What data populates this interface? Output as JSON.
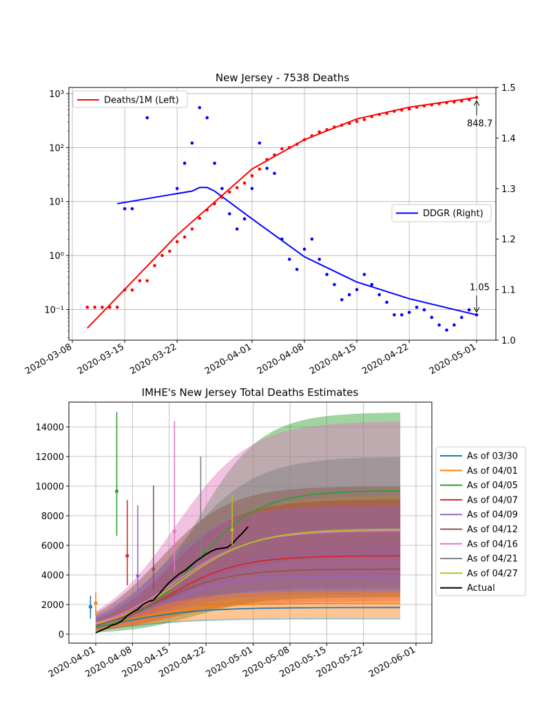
{
  "chart_data": [
    {
      "type": "scatter",
      "title": "New Jersey - 7538 Deaths",
      "xlabel": "",
      "ylabel_left": "",
      "ylabel_right": "",
      "x_ticks": [
        "2020-03-08",
        "2020-03-15",
        "2020-03-22",
        "2020-04-01",
        "2020-04-08",
        "2020-04-15",
        "2020-04-22",
        "2020-05-01"
      ],
      "y_left_scale": "log",
      "y_left_ticks": [
        "10⁻¹",
        "10⁰",
        "10¹",
        "10²",
        "10³"
      ],
      "y_left_lim": [
        0.027,
        1300
      ],
      "y_right_ticks": [
        "1.0",
        "1.1",
        "1.2",
        "1.3",
        "1.4",
        "1.5"
      ],
      "y_right_lim": [
        1.0,
        1.5
      ],
      "grid": true,
      "legend_left": {
        "label": "Deaths/1M (Left)",
        "color": "#ff0000",
        "placement": "upper-left"
      },
      "legend_right": {
        "label": "DDGR (Right)",
        "color": "#0000ff",
        "placement": "center-right"
      },
      "annotations": [
        {
          "text": "848.7",
          "x": "2020-05-01",
          "y": 848.7,
          "axis": "left"
        },
        {
          "text": "1.05",
          "x": "2020-05-01",
          "y": 1.05,
          "axis": "right"
        }
      ],
      "series": [
        {
          "axis": "left",
          "color": "#ff0000",
          "points": [
            [
              "2020-03-10",
              0.11
            ],
            [
              "2020-03-11",
              0.11
            ],
            [
              "2020-03-12",
              0.11
            ],
            [
              "2020-03-13",
              0.11
            ],
            [
              "2020-03-14",
              0.11
            ],
            [
              "2020-03-15",
              0.23
            ],
            [
              "2020-03-16",
              0.23
            ],
            [
              "2020-03-17",
              0.34
            ],
            [
              "2020-03-18",
              0.34
            ],
            [
              "2020-03-19",
              0.65
            ],
            [
              "2020-03-20",
              1.0
            ],
            [
              "2020-03-21",
              1.2
            ],
            [
              "2020-03-22",
              1.8
            ],
            [
              "2020-03-23",
              2.2
            ],
            [
              "2020-03-24",
              3.1
            ],
            [
              "2020-03-25",
              4.9
            ],
            [
              "2020-03-26",
              7.0
            ],
            [
              "2020-03-27",
              9.1
            ],
            [
              "2020-03-28",
              12
            ],
            [
              "2020-03-29",
              15
            ],
            [
              "2020-03-30",
              18
            ],
            [
              "2020-03-31",
              22
            ],
            [
              "2020-04-01",
              30
            ],
            [
              "2020-04-02",
              40
            ],
            [
              "2020-04-03",
              60
            ],
            [
              "2020-04-04",
              73
            ],
            [
              "2020-04-05",
              95
            ],
            [
              "2020-04-06",
              100
            ],
            [
              "2020-04-07",
              115
            ],
            [
              "2020-04-08",
              140
            ],
            [
              "2020-04-09",
              165
            ],
            [
              "2020-04-10",
              195
            ],
            [
              "2020-04-11",
              215
            ],
            [
              "2020-04-12",
              240
            ],
            [
              "2020-04-13",
              260
            ],
            [
              "2020-04-14",
              280
            ],
            [
              "2020-04-15",
              305
            ],
            [
              "2020-04-16",
              330
            ],
            [
              "2020-04-17",
              375
            ],
            [
              "2020-04-18",
              410
            ],
            [
              "2020-04-19",
              430
            ],
            [
              "2020-04-20",
              470
            ],
            [
              "2020-04-21",
              495
            ],
            [
              "2020-04-22",
              520
            ],
            [
              "2020-04-23",
              560
            ],
            [
              "2020-04-24",
              590
            ],
            [
              "2020-04-25",
              620
            ],
            [
              "2020-04-26",
              650
            ],
            [
              "2020-04-27",
              675
            ],
            [
              "2020-04-28",
              700
            ],
            [
              "2020-04-29",
              730
            ],
            [
              "2020-04-30",
              770
            ],
            [
              "2020-05-01",
              848.7
            ]
          ],
          "fit": [
            [
              "2020-03-10",
              0.045
            ],
            [
              "2020-03-22",
              2.4
            ],
            [
              "2020-04-01",
              40
            ],
            [
              "2020-04-08",
              140
            ],
            [
              "2020-04-15",
              340
            ],
            [
              "2020-04-22",
              560
            ],
            [
              "2020-05-01",
              848.7
            ]
          ]
        },
        {
          "axis": "right",
          "color": "#0000ff",
          "points": [
            [
              "2020-03-15",
              1.26
            ],
            [
              "2020-03-16",
              1.26
            ],
            [
              "2020-03-18",
              1.44
            ],
            [
              "2020-03-22",
              1.3
            ],
            [
              "2020-03-23",
              1.35
            ],
            [
              "2020-03-24",
              1.39
            ],
            [
              "2020-03-25",
              1.46
            ],
            [
              "2020-03-26",
              1.44
            ],
            [
              "2020-03-27",
              1.35
            ],
            [
              "2020-03-28",
              1.3
            ],
            [
              "2020-03-29",
              1.25
            ],
            [
              "2020-03-30",
              1.22
            ],
            [
              "2020-03-31",
              1.24
            ],
            [
              "2020-04-01",
              1.3
            ],
            [
              "2020-04-02",
              1.39
            ],
            [
              "2020-04-03",
              1.34
            ],
            [
              "2020-04-04",
              1.33
            ],
            [
              "2020-04-05",
              1.2
            ],
            [
              "2020-04-06",
              1.16
            ],
            [
              "2020-04-07",
              1.14
            ],
            [
              "2020-04-08",
              1.18
            ],
            [
              "2020-04-09",
              1.2
            ],
            [
              "2020-04-10",
              1.16
            ],
            [
              "2020-04-11",
              1.13
            ],
            [
              "2020-04-12",
              1.11
            ],
            [
              "2020-04-13",
              1.08
            ],
            [
              "2020-04-14",
              1.09
            ],
            [
              "2020-04-15",
              1.1
            ],
            [
              "2020-04-16",
              1.13
            ],
            [
              "2020-04-17",
              1.11
            ],
            [
              "2020-04-18",
              1.09
            ],
            [
              "2020-04-19",
              1.075
            ],
            [
              "2020-04-20",
              1.05
            ],
            [
              "2020-04-21",
              1.05
            ],
            [
              "2020-04-22",
              1.055
            ],
            [
              "2020-04-23",
              1.065
            ],
            [
              "2020-04-24",
              1.06
            ],
            [
              "2020-04-25",
              1.045
            ],
            [
              "2020-04-26",
              1.03
            ],
            [
              "2020-04-27",
              1.02
            ],
            [
              "2020-04-28",
              1.03
            ],
            [
              "2020-04-29",
              1.045
            ],
            [
              "2020-04-30",
              1.06
            ],
            [
              "2020-05-01",
              1.05
            ]
          ],
          "fit": [
            [
              "2020-03-14",
              1.27
            ],
            [
              "2020-03-20",
              1.285
            ],
            [
              "2020-03-24",
              1.295
            ],
            [
              "2020-03-25",
              1.302
            ],
            [
              "2020-03-26",
              1.302
            ],
            [
              "2020-03-27",
              1.295
            ],
            [
              "2020-04-01",
              1.24
            ],
            [
              "2020-04-08",
              1.165
            ],
            [
              "2020-04-15",
              1.115
            ],
            [
              "2020-04-22",
              1.082
            ],
            [
              "2020-05-01",
              1.05
            ]
          ]
        }
      ]
    },
    {
      "type": "line",
      "title": "IMHE's New Jersey Total Deaths Estimates",
      "xlabel": "",
      "ylabel": "",
      "x_ticks": [
        "2020-04-01",
        "2020-04-08",
        "2020-04-15",
        "2020-04-22",
        "2020-05-01",
        "2020-05-08",
        "2020-05-15",
        "2020-05-22",
        "2020-06-01"
      ],
      "y_ticks": [
        "0",
        "2000",
        "4000",
        "6000",
        "8000",
        "10000",
        "12000",
        "14000"
      ],
      "ylim": [
        -700,
        15700
      ],
      "grid": true,
      "legend_placement": "outside-right",
      "series": [
        {
          "name": "As of 03/30",
          "color": "#1f77b4",
          "start": "2020-04-01",
          "final": 1800,
          "lower": 1000,
          "upper": 1100,
          "k": 0.14,
          "mid_offset": 6,
          "marker": {
            "x": "2020-03-31",
            "y": 1850,
            "lo": 1050,
            "hi": 2600
          }
        },
        {
          "name": "As of 04/01",
          "color": "#ff7f0e",
          "start": "2020-04-01",
          "final": 2100,
          "lower": 1100,
          "upper": 2900,
          "k": 0.14,
          "mid_offset": 7,
          "marker": {
            "x": "2020-04-01",
            "y": 2100,
            "lo": 1250,
            "hi": 2850
          }
        },
        {
          "name": "As of 04/05",
          "color": "#2ca02c",
          "start": "2020-04-01",
          "final": 9700,
          "lower": 2500,
          "upper": 15000,
          "k": 0.16,
          "mid_offset": 19,
          "marker": {
            "x": "2020-04-05",
            "y": 9650,
            "lo": 6650,
            "hi": 15000
          }
        },
        {
          "name": "As of 04/07",
          "color": "#d62728",
          "start": "2020-04-01",
          "final": 5300,
          "lower": 2200,
          "upper": 9100,
          "k": 0.15,
          "mid_offset": 14,
          "marker": {
            "x": "2020-04-07",
            "y": 5300,
            "lo": 3300,
            "hi": 9050
          }
        },
        {
          "name": "As of 04/09",
          "color": "#9467bd",
          "start": "2020-04-01",
          "final": 3950,
          "lower": 2700,
          "upper": 8700,
          "k": 0.15,
          "mid_offset": 12,
          "marker": {
            "x": "2020-04-09",
            "y": 3950,
            "lo": 2350,
            "hi": 8700
          }
        },
        {
          "name": "As of 04/12",
          "color": "#8c564b",
          "start": "2020-04-01",
          "final": 4400,
          "lower": 3100,
          "upper": 10000,
          "k": 0.15,
          "mid_offset": 12,
          "marker": {
            "x": "2020-04-12",
            "y": 4400,
            "lo": 3000,
            "hi": 10050
          }
        },
        {
          "name": "As of 04/16",
          "color": "#e377c2",
          "start": "2020-04-01",
          "final": 7000,
          "lower": 4000,
          "upper": 14400,
          "k": 0.14,
          "mid_offset": 15,
          "marker": {
            "x": "2020-04-16",
            "y": 6950,
            "lo": 4200,
            "hi": 14400
          }
        },
        {
          "name": "As of 04/21",
          "color": "#7f7f7f",
          "start": "2020-04-01",
          "final": 7150,
          "lower": 5200,
          "upper": 12000,
          "k": 0.14,
          "mid_offset": 16,
          "marker": {
            "x": "2020-04-21",
            "y": 7100,
            "lo": 5200,
            "hi": 12000
          }
        },
        {
          "name": "As of 04/27",
          "color": "#bcbd22",
          "start": "2020-04-01",
          "final": 7100,
          "lower": 6000,
          "upper": 9400,
          "k": 0.14,
          "mid_offset": 16,
          "marker": {
            "x": "2020-04-27",
            "y": 7050,
            "lo": 6000,
            "hi": 9400
          }
        },
        {
          "name": "Actual",
          "color": "#000000",
          "points": [
            [
              "2020-04-01",
              100
            ],
            [
              "2020-04-02",
              250
            ],
            [
              "2020-04-03",
              400
            ],
            [
              "2020-04-04",
              600
            ],
            [
              "2020-04-05",
              700
            ],
            [
              "2020-04-06",
              900
            ],
            [
              "2020-04-07",
              1250
            ],
            [
              "2020-04-08",
              1500
            ],
            [
              "2020-04-09",
              1700
            ],
            [
              "2020-04-10",
              2000
            ],
            [
              "2020-04-11",
              2200
            ],
            [
              "2020-04-12",
              2300
            ],
            [
              "2020-04-13",
              2700
            ],
            [
              "2020-04-14",
              3100
            ],
            [
              "2020-04-15",
              3500
            ],
            [
              "2020-04-16",
              3800
            ],
            [
              "2020-04-17",
              4100
            ],
            [
              "2020-04-18",
              4300
            ],
            [
              "2020-04-19",
              4600
            ],
            [
              "2020-04-20",
              4900
            ],
            [
              "2020-04-21",
              5150
            ],
            [
              "2020-04-22",
              5400
            ],
            [
              "2020-04-23",
              5600
            ],
            [
              "2020-04-24",
              5750
            ],
            [
              "2020-04-25",
              5800
            ],
            [
              "2020-04-26",
              5850
            ],
            [
              "2020-04-27",
              6100
            ],
            [
              "2020-04-28",
              6500
            ],
            [
              "2020-04-29",
              6850
            ],
            [
              "2020-04-30",
              7250
            ]
          ]
        }
      ]
    }
  ]
}
